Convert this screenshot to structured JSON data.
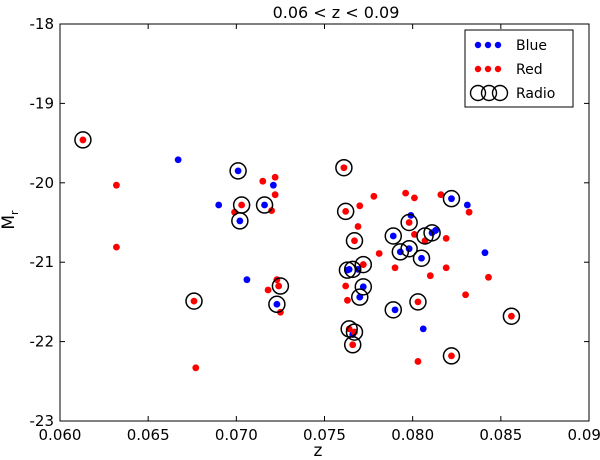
{
  "chart_data": {
    "type": "scatter",
    "title": "0.06 < z < 0.09",
    "xlabel": "z",
    "ylabel": "M",
    "ylabel_subscript": "r",
    "xlim": [
      0.06,
      0.09
    ],
    "ylim": [
      -23,
      -18
    ],
    "y_inverted": true,
    "grid": false,
    "legend_position": "top-right",
    "x_ticks": [
      "0.060",
      "0.065",
      "0.070",
      "0.075",
      "0.080",
      "0.085",
      "0.090"
    ],
    "y_ticks": [
      "-18",
      "-19",
      "-20",
      "-21",
      "-22",
      "-23"
    ],
    "legend": [
      {
        "label": "Blue",
        "marker": "dot",
        "color": "#0000ff"
      },
      {
        "label": "Red",
        "marker": "dot",
        "color": "#ff0000"
      },
      {
        "label": "Radio",
        "marker": "ring",
        "color": "#000000"
      }
    ],
    "series": [
      {
        "name": "Blue",
        "color": "#0000ff",
        "points": [
          [
            0.0667,
            -19.71
          ],
          [
            0.069,
            -20.28
          ],
          [
            0.0701,
            -19.85
          ],
          [
            0.0702,
            -20.48
          ],
          [
            0.0706,
            -21.22
          ],
          [
            0.0716,
            -20.28
          ],
          [
            0.0721,
            -20.03
          ],
          [
            0.0723,
            -21.53
          ],
          [
            0.0763,
            -21.1
          ],
          [
            0.0764,
            -21.09
          ],
          [
            0.0766,
            -21.91
          ],
          [
            0.0769,
            -21.09
          ],
          [
            0.077,
            -21.44
          ],
          [
            0.0772,
            -21.31
          ],
          [
            0.0789,
            -20.67
          ],
          [
            0.079,
            -21.6
          ],
          [
            0.0793,
            -20.87
          ],
          [
            0.0798,
            -20.83
          ],
          [
            0.0799,
            -20.41
          ],
          [
            0.0805,
            -20.95
          ],
          [
            0.0806,
            -21.84
          ],
          [
            0.0811,
            -20.63
          ],
          [
            0.0813,
            -20.6
          ],
          [
            0.0822,
            -20.2
          ],
          [
            0.0831,
            -20.28
          ],
          [
            0.0841,
            -20.88
          ]
        ]
      },
      {
        "name": "Red",
        "color": "#ff0000",
        "points": [
          [
            0.0613,
            -19.46
          ],
          [
            0.0632,
            -20.03
          ],
          [
            0.0632,
            -20.81
          ],
          [
            0.0676,
            -21.49
          ],
          [
            0.0677,
            -22.33
          ],
          [
            0.0699,
            -20.37
          ],
          [
            0.0703,
            -20.28
          ],
          [
            0.0715,
            -19.98
          ],
          [
            0.0718,
            -21.35
          ],
          [
            0.072,
            -20.35
          ],
          [
            0.0722,
            -20.15
          ],
          [
            0.0722,
            -19.93
          ],
          [
            0.0723,
            -21.22
          ],
          [
            0.0724,
            -21.3
          ],
          [
            0.0725,
            -21.63
          ],
          [
            0.0761,
            -19.81
          ],
          [
            0.0762,
            -20.36
          ],
          [
            0.0762,
            -21.3
          ],
          [
            0.0763,
            -21.48
          ],
          [
            0.0764,
            -21.84
          ],
          [
            0.0766,
            -22.04
          ],
          [
            0.0767,
            -20.73
          ],
          [
            0.0767,
            -21.88
          ],
          [
            0.0769,
            -20.55
          ],
          [
            0.077,
            -20.29
          ],
          [
            0.0772,
            -21.03
          ],
          [
            0.0778,
            -20.17
          ],
          [
            0.0781,
            -20.89
          ],
          [
            0.079,
            -21.07
          ],
          [
            0.0796,
            -20.13
          ],
          [
            0.0798,
            -20.5
          ],
          [
            0.0801,
            -20.19
          ],
          [
            0.0801,
            -20.65
          ],
          [
            0.0803,
            -21.5
          ],
          [
            0.0803,
            -22.25
          ],
          [
            0.0807,
            -20.73
          ],
          [
            0.081,
            -21.17
          ],
          [
            0.0816,
            -20.15
          ],
          [
            0.0819,
            -20.7
          ],
          [
            0.0819,
            -21.07
          ],
          [
            0.0822,
            -22.18
          ],
          [
            0.083,
            -21.41
          ],
          [
            0.0832,
            -20.37
          ],
          [
            0.0843,
            -21.19
          ],
          [
            0.0856,
            -21.68
          ]
        ]
      },
      {
        "name": "Radio",
        "color": "#000000",
        "points": [
          [
            0.0613,
            -19.46
          ],
          [
            0.0676,
            -21.49
          ],
          [
            0.0701,
            -19.85
          ],
          [
            0.0702,
            -20.48
          ],
          [
            0.0703,
            -20.28
          ],
          [
            0.0716,
            -20.28
          ],
          [
            0.0723,
            -21.53
          ],
          [
            0.0725,
            -21.3
          ],
          [
            0.0761,
            -19.81
          ],
          [
            0.0762,
            -20.36
          ],
          [
            0.0763,
            -21.1
          ],
          [
            0.0764,
            -21.84
          ],
          [
            0.0766,
            -21.09
          ],
          [
            0.0766,
            -22.04
          ],
          [
            0.0767,
            -20.73
          ],
          [
            0.0767,
            -21.88
          ],
          [
            0.077,
            -21.44
          ],
          [
            0.0772,
            -21.03
          ],
          [
            0.0772,
            -21.31
          ],
          [
            0.0789,
            -20.67
          ],
          [
            0.0789,
            -21.6
          ],
          [
            0.0793,
            -20.87
          ],
          [
            0.0798,
            -20.5
          ],
          [
            0.0798,
            -20.83
          ],
          [
            0.0803,
            -21.5
          ],
          [
            0.0805,
            -20.95
          ],
          [
            0.0807,
            -20.67
          ],
          [
            0.0811,
            -20.63
          ],
          [
            0.0822,
            -20.2
          ],
          [
            0.0822,
            -22.18
          ],
          [
            0.0856,
            -21.68
          ]
        ]
      }
    ]
  }
}
